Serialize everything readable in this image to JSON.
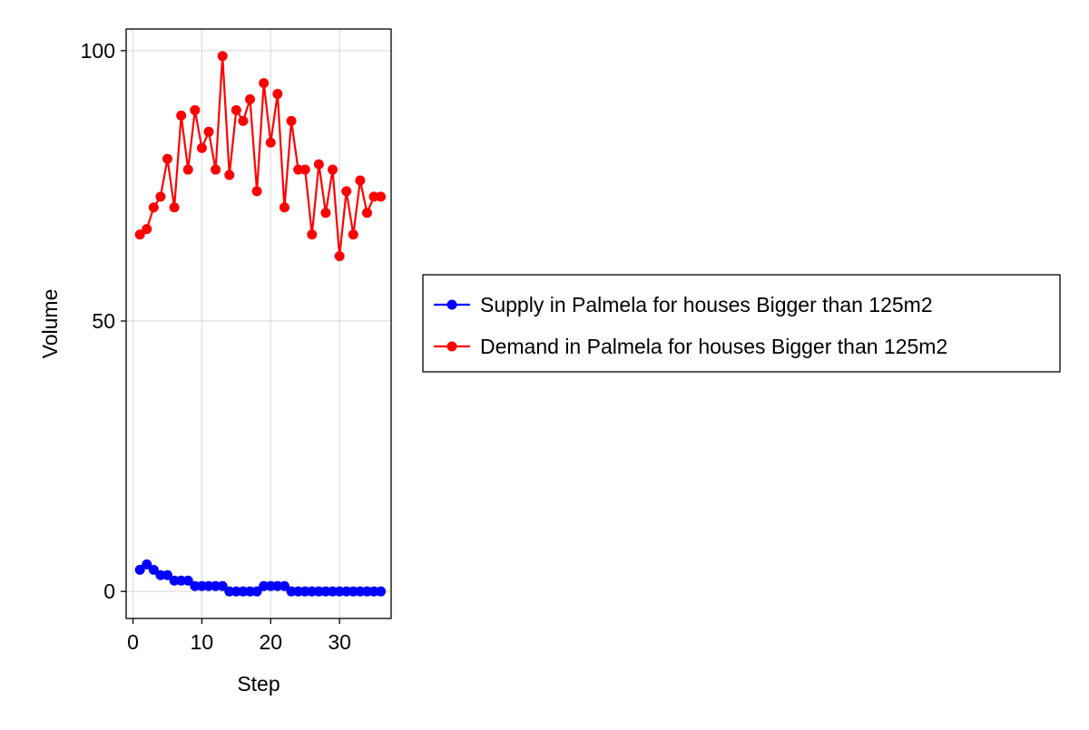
{
  "chart_data": {
    "type": "line",
    "xlabel": "Step",
    "ylabel": "Volume",
    "xlim": [
      -1,
      37.5
    ],
    "ylim": [
      -5,
      104
    ],
    "xticks": [
      0,
      10,
      20,
      30
    ],
    "yticks": [
      0,
      50,
      100
    ],
    "grid": true,
    "legend_position": "right",
    "x": [
      1,
      2,
      3,
      4,
      5,
      6,
      7,
      8,
      9,
      10,
      11,
      12,
      13,
      14,
      15,
      16,
      17,
      18,
      19,
      20,
      21,
      22,
      23,
      24,
      25,
      26,
      27,
      28,
      29,
      30,
      31,
      32,
      33,
      34,
      35,
      36
    ],
    "series": [
      {
        "name": "Supply in Palmela for houses Bigger than 125m2",
        "color": "#0000ff",
        "values": [
          4,
          5,
          4,
          3,
          3,
          2,
          2,
          2,
          1,
          1,
          1,
          1,
          1,
          0,
          0,
          0,
          0,
          0,
          1,
          1,
          1,
          1,
          0,
          0,
          0,
          0,
          0,
          0,
          0,
          0,
          0,
          0,
          0,
          0,
          0,
          0
        ]
      },
      {
        "name": "Demand in Palmela for houses Bigger than 125m2",
        "color": "#ff0000",
        "values": [
          66,
          67,
          71,
          73,
          80,
          71,
          88,
          78,
          89,
          82,
          85,
          78,
          99,
          77,
          89,
          87,
          91,
          74,
          94,
          83,
          92,
          71,
          87,
          78,
          78,
          66,
          79,
          70,
          78,
          62,
          74,
          66,
          76,
          70,
          73,
          73
        ]
      }
    ]
  }
}
